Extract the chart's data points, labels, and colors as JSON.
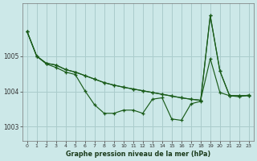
{
  "title": "Graphe pression niveau de la mer (hPa)",
  "bg_color": "#cce8e8",
  "grid_color": "#aacccc",
  "line_color": "#1a5c1a",
  "xlim": [
    -0.5,
    23.5
  ],
  "ylim": [
    1002.6,
    1006.5
  ],
  "yticks": [
    1003,
    1004,
    1005
  ],
  "xticks": [
    0,
    1,
    2,
    3,
    4,
    5,
    6,
    7,
    8,
    9,
    10,
    11,
    12,
    13,
    14,
    15,
    16,
    17,
    18,
    19,
    20,
    21,
    22,
    23
  ],
  "series": [
    [
      1005.7,
      1005.0,
      1004.8,
      1004.75,
      1004.62,
      1004.55,
      1004.45,
      1004.35,
      1004.25,
      1004.18,
      1004.12,
      1004.07,
      1004.02,
      1003.97,
      1003.92,
      1003.87,
      1003.82,
      1003.78,
      1003.75,
      1006.15,
      1004.58,
      1003.88,
      1003.88,
      1003.88
    ],
    [
      1005.7,
      1005.0,
      1004.8,
      1004.75,
      1004.62,
      1004.55,
      1004.45,
      1004.35,
      1004.25,
      1004.18,
      1004.12,
      1004.07,
      1004.02,
      1003.97,
      1003.92,
      1003.87,
      1003.82,
      1003.78,
      1003.75,
      1004.93,
      1003.97,
      1003.88,
      1003.88,
      1003.88
    ],
    [
      1005.7,
      1005.0,
      1004.78,
      1004.68,
      1004.55,
      1004.48,
      1004.02,
      1003.62,
      1003.38,
      1003.38,
      1003.47,
      1003.47,
      1003.38,
      1003.78,
      1003.82,
      1003.22,
      1003.18,
      1003.65,
      1003.72,
      1006.15,
      1004.58,
      1003.88,
      1003.85,
      1003.9
    ]
  ]
}
